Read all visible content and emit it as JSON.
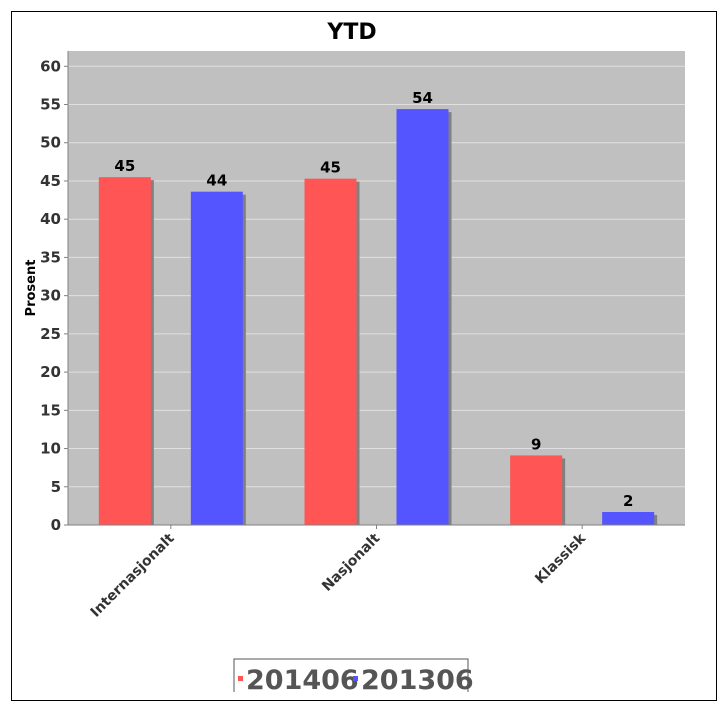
{
  "chart_data": {
    "type": "bar",
    "title": "YTD",
    "ylabel": "Prosent",
    "xlabel": "",
    "ylim": [
      0,
      62
    ],
    "yticks": [
      0,
      5,
      10,
      15,
      20,
      25,
      30,
      35,
      40,
      45,
      50,
      55,
      60
    ],
    "categories": [
      "Internasjonalt",
      "Nasjonalt",
      "Klassisk"
    ],
    "series": [
      {
        "name": "201406",
        "values": [
          45.5,
          45.3,
          9.1
        ],
        "labels": [
          "45",
          "45",
          "9"
        ],
        "color": "#ff5555"
      },
      {
        "name": "201306",
        "values": [
          43.6,
          54.4,
          1.7
        ],
        "labels": [
          "44",
          "54",
          "2"
        ],
        "color": "#5555ff"
      }
    ],
    "grid": true,
    "legend_position": "bottom",
    "plot_background": "#c0c0c0"
  }
}
